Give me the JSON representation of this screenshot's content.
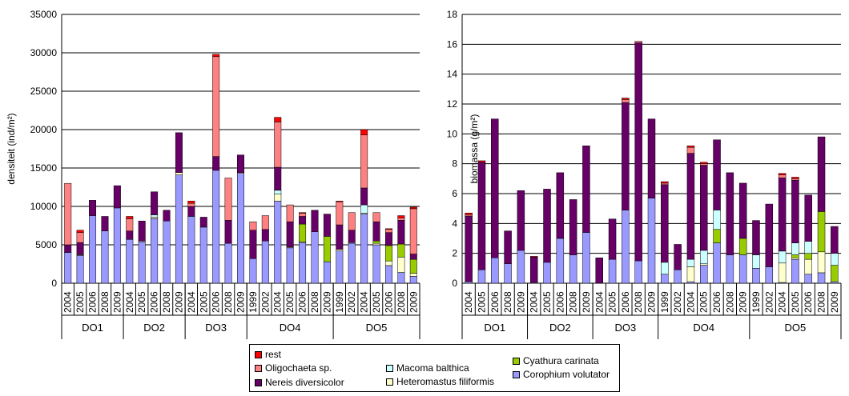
{
  "chart_data": [
    {
      "type": "bar",
      "stacked": true,
      "ylabel": "densiteit (ind/m²)",
      "ylim": [
        0,
        35000
      ],
      "yticks": [
        "0",
        "5000",
        "10000",
        "15000",
        "20000",
        "25000",
        "30000",
        "35000"
      ],
      "grid": true,
      "groups": [
        {
          "name": "DO1",
          "years": [
            "2004",
            "2005",
            "2006",
            "2008",
            "2009"
          ]
        },
        {
          "name": "DO2",
          "years": [
            "2004",
            "2005",
            "2006",
            "2008",
            "2009"
          ]
        },
        {
          "name": "DO3",
          "years": [
            "2004",
            "2005",
            "2006",
            "2008",
            "2009"
          ]
        },
        {
          "name": "DO4",
          "years": [
            "1999",
            "2002",
            "2004",
            "2005",
            "2006",
            "2008",
            "2009"
          ]
        },
        {
          "name": "DO5",
          "years": [
            "1999",
            "2002",
            "2004",
            "2005",
            "2006",
            "2008",
            "2009"
          ]
        }
      ],
      "series": [
        {
          "name": "Corophium volutator",
          "color": "#9999ff",
          "values": [
            4000,
            3600,
            8800,
            6800,
            9800,
            5700,
            5400,
            8400,
            8100,
            14100,
            8700,
            7300,
            14700,
            5200,
            14300,
            3200,
            5500,
            10700,
            4600,
            5300,
            6700,
            2800,
            4200,
            5200,
            9000,
            5000,
            2300,
            1400,
            900
          ]
        },
        {
          "name": "Heteromastus filiformis",
          "color": "#ffffcc",
          "values": [
            0,
            100,
            0,
            0,
            0,
            0,
            100,
            200,
            0,
            300,
            0,
            0,
            0,
            0,
            100,
            0,
            0,
            900,
            100,
            100,
            0,
            0,
            200,
            0,
            100,
            200,
            600,
            2000,
            400
          ]
        },
        {
          "name": "Cyathura carinata",
          "color": "#99cc00",
          "values": [
            0,
            0,
            0,
            0,
            0,
            0,
            0,
            0,
            0,
            0,
            0,
            0,
            0,
            0,
            0,
            0,
            0,
            0,
            0,
            2300,
            0,
            3300,
            0,
            0,
            0,
            300,
            2000,
            1700,
            1800
          ]
        },
        {
          "name": "Macoma balthica",
          "color": "#ccffff",
          "values": [
            0,
            0,
            0,
            0,
            0,
            0,
            0,
            300,
            0,
            0,
            0,
            0,
            0,
            0,
            0,
            0,
            0,
            500,
            0,
            0,
            0,
            0,
            0,
            100,
            1100,
            0,
            0,
            0,
            0
          ]
        },
        {
          "name": "Nereis diversicolor",
          "color": "#660066",
          "values": [
            1000,
            1600,
            2000,
            1900,
            2900,
            1100,
            2600,
            3000,
            1400,
            5200,
            1300,
            1300,
            1800,
            3000,
            2300,
            3700,
            1500,
            3000,
            3300,
            1000,
            2800,
            2900,
            3200,
            1600,
            2200,
            2500,
            1700,
            3100,
            700
          ]
        },
        {
          "name": "Oligochaeta sp.",
          "color": "#ff8080",
          "values": [
            8000,
            1300,
            0,
            0,
            0,
            1600,
            0,
            0,
            0,
            0,
            400,
            0,
            13000,
            5500,
            0,
            1100,
            1800,
            5900,
            2200,
            400,
            0,
            0,
            3000,
            2300,
            6900,
            1200,
            400,
            300,
            5900
          ]
        },
        {
          "name": "rest",
          "color": "#ff0000",
          "values": [
            0,
            300,
            0,
            0,
            0,
            300,
            0,
            0,
            0,
            0,
            300,
            0,
            300,
            0,
            0,
            0,
            0,
            600,
            0,
            100,
            0,
            0,
            100,
            0,
            700,
            0,
            100,
            300,
            200
          ]
        }
      ]
    },
    {
      "type": "bar",
      "stacked": true,
      "ylabel": "biomassa (g/m²)",
      "ylim": [
        0,
        18
      ],
      "yticks": [
        "0",
        "2",
        "4",
        "6",
        "8",
        "10",
        "12",
        "14",
        "16",
        "18"
      ],
      "grid": true,
      "groups": [
        {
          "name": "DO1",
          "years": [
            "2004",
            "2005",
            "2006",
            "2008",
            "2009"
          ]
        },
        {
          "name": "DO2",
          "years": [
            "2004",
            "2005",
            "2006",
            "2008",
            "2009"
          ]
        },
        {
          "name": "DO3",
          "years": [
            "2004",
            "2005",
            "2006",
            "2008",
            "2009"
          ]
        },
        {
          "name": "DO4",
          "years": [
            "1999",
            "2002",
            "2004",
            "2005",
            "2006",
            "2008",
            "2009"
          ]
        },
        {
          "name": "DO5",
          "years": [
            "1999",
            "2002",
            "2004",
            "2005",
            "2006",
            "2008",
            "2009"
          ]
        }
      ],
      "series": [
        {
          "name": "Corophium volutator",
          "color": "#9999ff",
          "values": [
            0.1,
            0.9,
            1.7,
            1.3,
            2.2,
            0.05,
            1.4,
            3.0,
            1.9,
            3.4,
            0,
            1.6,
            4.9,
            1.5,
            5.7,
            0.6,
            0.9,
            0.1,
            1.2,
            2.7,
            1.9,
            1.9,
            1.0,
            1.1,
            0.05,
            1.6,
            0.6,
            0.7,
            0.1
          ]
        },
        {
          "name": "Heteromastus filiformis",
          "color": "#ffffcc",
          "values": [
            0,
            0,
            0,
            0,
            0,
            0,
            0,
            0,
            0,
            0,
            0,
            0,
            0,
            0,
            0,
            0,
            0,
            1.0,
            0.1,
            0,
            0,
            0,
            0,
            0,
            1.3,
            0.1,
            1.0,
            1.4,
            0
          ]
        },
        {
          "name": "Cyathura carinata",
          "color": "#99cc00",
          "values": [
            0,
            0,
            0,
            0,
            0,
            0,
            0,
            0,
            0,
            0,
            0,
            0,
            0,
            0,
            0,
            0,
            0,
            0,
            0,
            0.9,
            0,
            1.1,
            0,
            0,
            0,
            0.2,
            0.4,
            2.7,
            1.1
          ]
        },
        {
          "name": "Macoma balthica",
          "color": "#ccffff",
          "values": [
            0,
            0,
            0,
            0,
            0,
            0,
            0,
            0,
            0,
            0,
            0,
            0,
            0,
            0,
            0,
            0.8,
            0,
            0.5,
            0.9,
            1.3,
            0,
            0,
            0.9,
            0,
            0.8,
            0.8,
            0.8,
            0,
            0.8
          ]
        },
        {
          "name": "Nereis diversicolor",
          "color": "#660066",
          "values": [
            4.4,
            7.2,
            9.3,
            2.2,
            4.0,
            1.7,
            4.9,
            4.4,
            3.7,
            5.8,
            1.7,
            2.7,
            7.2,
            14.6,
            5.3,
            5.2,
            1.7,
            7.1,
            5.7,
            4.7,
            5.5,
            3.7,
            2.3,
            4.2,
            4.9,
            4.2,
            3.1,
            5.0,
            1.8
          ]
        },
        {
          "name": "Oligochaeta sp.",
          "color": "#ff8080",
          "values": [
            0.1,
            0,
            0,
            0,
            0,
            0,
            0,
            0,
            0,
            0,
            0,
            0,
            0.2,
            0.1,
            0,
            0.1,
            0,
            0.4,
            0.1,
            0,
            0,
            0,
            0,
            0,
            0.2,
            0.1,
            0,
            0,
            0
          ]
        },
        {
          "name": "rest",
          "color": "#ff0000",
          "values": [
            0.1,
            0.1,
            0,
            0,
            0,
            0.05,
            0,
            0,
            0,
            0,
            0,
            0,
            0.1,
            0,
            0,
            0.1,
            0,
            0.1,
            0.1,
            0,
            0,
            0,
            0,
            0,
            0.1,
            0.1,
            0,
            0,
            0
          ]
        }
      ]
    }
  ],
  "legend": {
    "placement": "bottom-center",
    "items": [
      {
        "label": "rest",
        "color": "#ff0000"
      },
      {
        "label": "Oligochaeta sp.",
        "color": "#ff8080"
      },
      {
        "label": "Nereis diversicolor",
        "color": "#660066"
      },
      {
        "label": "Macoma balthica",
        "color": "#ccffff"
      },
      {
        "label": "Heteromastus filiformis",
        "color": "#ffffcc"
      },
      {
        "label": "Cyathura carinata",
        "color": "#99cc00"
      },
      {
        "label": "Corophium volutator",
        "color": "#9999ff"
      }
    ]
  }
}
